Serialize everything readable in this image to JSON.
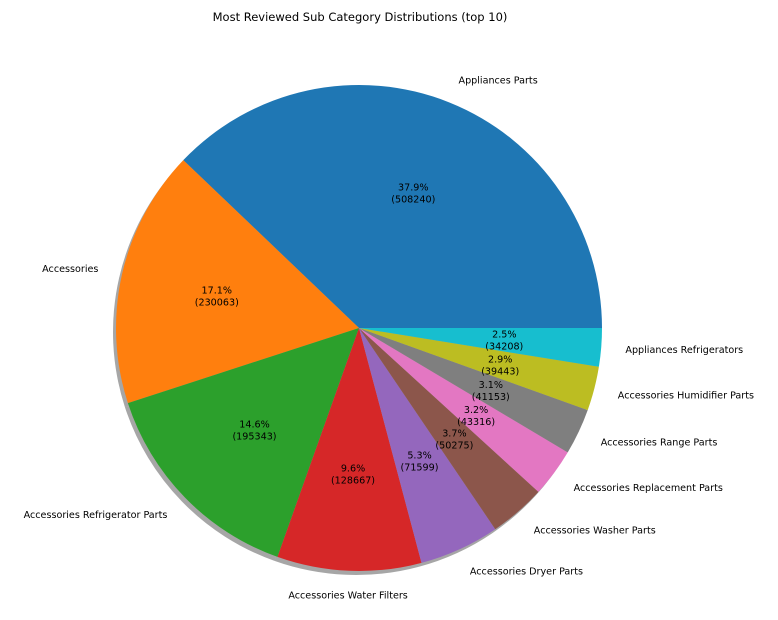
{
  "chart_data": {
    "type": "pie",
    "title": "Most Reviewed Sub Category Distributions (top 10)",
    "start_angle_deg": 0,
    "direction": "counterclockwise",
    "shadow": true,
    "slices": [
      {
        "label": "Appliances Parts",
        "value": 508240,
        "percent_label": "37.9%",
        "value_label": "(508240)",
        "color": "#1f77b4"
      },
      {
        "label": "Accessories",
        "value": 230063,
        "percent_label": "17.1%",
        "value_label": "(230063)",
        "color": "#ff7f0e"
      },
      {
        "label": "Accessories Refrigerator Parts",
        "value": 195343,
        "percent_label": "14.6%",
        "value_label": "(195343)",
        "color": "#2ca02c"
      },
      {
        "label": "Accessories Water Filters",
        "value": 128667,
        "percent_label": "9.6%",
        "value_label": "(128667)",
        "color": "#d62728"
      },
      {
        "label": "Accessories Dryer Parts",
        "value": 71599,
        "percent_label": "5.3%",
        "value_label": "(71599)",
        "color": "#9467bd"
      },
      {
        "label": "Accessories Washer Parts",
        "value": 50275,
        "percent_label": "3.7%",
        "value_label": "(50275)",
        "color": "#8c564b"
      },
      {
        "label": "Accessories Replacement Parts",
        "value": 43316,
        "percent_label": "3.2%",
        "value_label": "(43316)",
        "color": "#e377c2"
      },
      {
        "label": "Accessories Range Parts",
        "value": 41153,
        "percent_label": "3.1%",
        "value_label": "(41153)",
        "color": "#7f7f7f"
      },
      {
        "label": "Accessories Humidifier Parts",
        "value": 39443,
        "percent_label": "2.9%",
        "value_label": "(39443)",
        "color": "#bcbd22"
      },
      {
        "label": "Appliances Refrigerators",
        "value": 34208,
        "percent_label": "2.5%",
        "value_label": "(34208)",
        "color": "#17becf"
      }
    ]
  }
}
